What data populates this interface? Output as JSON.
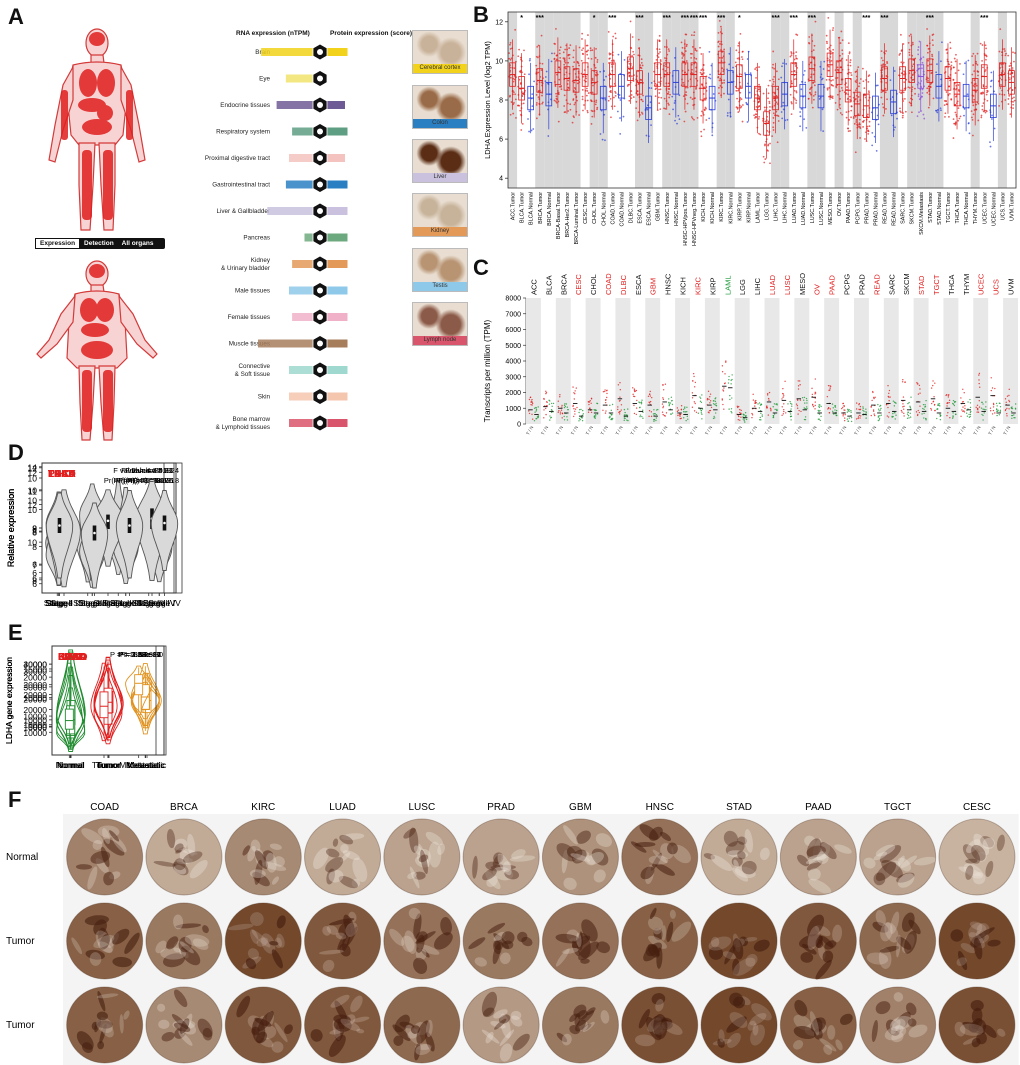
{
  "panels": {
    "a": "A",
    "b": "B",
    "c": "C",
    "d": "D",
    "e": "E",
    "f": "F"
  },
  "panel_a": {
    "rna_header": "RNA expression (nTPM)",
    "protein_header": "Protein expression (score)",
    "legend_tabs": [
      "Expression",
      "Detection",
      "All organs"
    ],
    "organ_rows": [
      {
        "label": "Brain",
        "color": "#f2d21b",
        "rna": 0.95,
        "protein": 0.55
      },
      {
        "label": "Eye",
        "color": "#f1e36b",
        "rna": 0.55,
        "protein": 0.0
      },
      {
        "label": "Endocrine tissues",
        "color": "#6e5a94",
        "rna": 0.7,
        "protein": 0.5
      },
      {
        "label": "Respiratory system",
        "color": "#5e9e82",
        "rna": 0.45,
        "protein": 0.55
      },
      {
        "label": "Proximal digestive tract",
        "color": "#f4c3c0",
        "rna": 0.5,
        "protein": 0.5
      },
      {
        "label": "Gastrointestinal tract",
        "color": "#2a7fc2",
        "rna": 0.55,
        "protein": 0.55
      },
      {
        "label": "Liver & Gallbladder",
        "color": "#c9c1de",
        "rna": 0.85,
        "protein": 0.55
      },
      {
        "label": "Pancreas",
        "color": "#6da97e",
        "rna": 0.25,
        "protein": 0.55
      },
      {
        "label": "Kidney & Urinary bladder",
        "color": "#e39a58",
        "rna": 0.45,
        "protein": 0.55
      },
      {
        "label": "Male tissues",
        "color": "#8fc9e9",
        "rna": 0.5,
        "protein": 0.55
      },
      {
        "label": "Female tissues",
        "color": "#f0b1c8",
        "rna": 0.45,
        "protein": 0.55
      },
      {
        "label": "Muscle tissues",
        "color": "#a77e5c",
        "rna": 1.0,
        "protein": 0.55
      },
      {
        "label": "Connective & Soft tissue",
        "color": "#9fd8cf",
        "rna": 0.5,
        "protein": 0.55
      },
      {
        "label": "Skin",
        "color": "#f4c6ae",
        "rna": 0.5,
        "protein": 0.55
      },
      {
        "label": "Bone marrow & Lymphoid tissues",
        "color": "#d9556b",
        "rna": 0.5,
        "protein": 0.55
      }
    ],
    "tissue_images": [
      {
        "label": "Cerebral cortex",
        "color": "#f2d21b"
      },
      {
        "label": "Colon",
        "color": "#2a7fc2"
      },
      {
        "label": "Liver",
        "color": "#c9c1de"
      },
      {
        "label": "Kidney",
        "color": "#e39a58"
      },
      {
        "label": "Testis",
        "color": "#8fc9e9"
      },
      {
        "label": "Lymph node",
        "color": "#d9556b"
      }
    ]
  },
  "panel_b": {
    "chart_data": {
      "type": "box",
      "ylabel": "LDHA Expression Level (log2 TPM)",
      "ylim": [
        0,
        14
      ],
      "yticks": [
        4,
        6,
        8,
        10,
        12,
        14
      ],
      "categories": [
        "ACC.Tumor",
        "BLCA.Tumor",
        "BLCA.Normal",
        "BRCA.Tumor",
        "BRCA.Normal",
        "BRCA-Basal.Tumor",
        "BRCA-Her2.Tumor",
        "BRCA-Luminal.Tumor",
        "CESC.Tumor",
        "CHOL.Tumor",
        "CHOL.Normal",
        "COAD.Tumor",
        "COAD.Normal",
        "DLBC.Tumor",
        "ESCA.Tumor",
        "ESCA.Normal",
        "GBM.Tumor",
        "HNSC.Tumor",
        "HNSC.Normal",
        "HNSC-HPVpos.Tumor",
        "HNSC-HPVneg.Tumor",
        "KICH.Tumor",
        "KICH.Normal",
        "KIRC.Tumor",
        "KIRC.Normal",
        "KIRP.Tumor",
        "KIRP.Normal",
        "LAML.Tumor",
        "LGG.Tumor",
        "LIHC.Tumor",
        "LIHC.Normal",
        "LUAD.Tumor",
        "LUAD.Normal",
        "LUSC.Tumor",
        "LUSC.Normal",
        "MESO.Tumor",
        "OV.Tumor",
        "PAAD.Tumor",
        "PCPG.Tumor",
        "PRAD.Tumor",
        "PRAD.Normal",
        "READ.Tumor",
        "READ.Normal",
        "SARC.Tumor",
        "SKCM.Tumor",
        "SKCM.Metastasis",
        "STAD.Tumor",
        "STAD.Normal",
        "TGCT.Tumor",
        "THCA.Tumor",
        "THCA.Normal",
        "THYM.Tumor",
        "UCEC.Tumor",
        "UCEC.Normal",
        "UCS.Tumor",
        "UVM.Tumor"
      ],
      "medians": [
        9.3,
        8.6,
        8.1,
        9.0,
        8.3,
        9.4,
        9.1,
        9.0,
        9.3,
        8.9,
        8.1,
        9.3,
        8.7,
        9.6,
        8.9,
        7.6,
        9.3,
        9.3,
        8.9,
        9.3,
        9.3,
        8.6,
        8.1,
        9.9,
        8.9,
        9.2,
        8.7,
        8.1,
        6.8,
        8.1,
        8.3,
        9.3,
        8.2,
        9.6,
        8.2,
        9.8,
        9.4,
        8.5,
        7.8,
        7.7,
        7.6,
        9.1,
        7.9,
        9.1,
        9.5,
        9.2,
        9.5,
        8.7,
        9.1,
        8.3,
        8.2,
        8.5,
        9.2,
        7.7,
        9.3,
        8.9
      ],
      "significance": [
        "",
        "*",
        "",
        "***",
        "",
        "",
        "",
        "",
        "",
        "*",
        "",
        "***",
        "",
        "",
        "***",
        "",
        "",
        "***",
        "",
        "***",
        "***",
        "***",
        "",
        "***",
        "",
        "*",
        "",
        "",
        "",
        "***",
        "",
        "***",
        "",
        "***",
        "",
        "",
        "",
        "",
        "",
        "***",
        "",
        "***",
        "",
        "",
        "",
        "",
        "***",
        "",
        "",
        "",
        "",
        "",
        "***",
        "",
        "",
        ""
      ],
      "shaded_groups": [
        "ACC",
        "BRCA",
        "CHOL",
        "ESCA",
        "HNSC",
        "KIRC",
        "LIHC",
        "LUSC",
        "OV",
        "PCPG",
        "READ",
        "SKCM",
        "STAD",
        "THYM",
        "UCS"
      ]
    }
  },
  "panel_c": {
    "chart_data": {
      "type": "scatter",
      "ylabel": "Transcripts per million (TPM)",
      "ylim": [
        0,
        8000
      ],
      "yticks": [
        0,
        1000,
        2000,
        3000,
        4000,
        5000,
        6000,
        7000,
        8000
      ],
      "cancer_types": [
        "ACC",
        "BLCA",
        "BRCA",
        "CESC",
        "CHOL",
        "COAD",
        "DLBC",
        "ESCA",
        "GBM",
        "HNSC",
        "KICH",
        "KIRC",
        "KIRP",
        "LAML",
        "LGG",
        "LIHC",
        "LUAD",
        "LUSC",
        "MESO",
        "OV",
        "PAAD",
        "PCPG",
        "PRAD",
        "READ",
        "SARC",
        "SKCM",
        "STAD",
        "TGCT",
        "THCA",
        "THYM",
        "UCEC",
        "UCS",
        "UVM"
      ],
      "label_colors": [
        "#111",
        "#111",
        "#111",
        "#e02020",
        "#111",
        "#e02020",
        "#e02020",
        "#111",
        "#e02020",
        "#111",
        "#111",
        "#e02020",
        "#111",
        "#1f9a3a",
        "#111",
        "#111",
        "#e02020",
        "#e02020",
        "#111",
        "#e02020",
        "#e02020",
        "#111",
        "#111",
        "#e02020",
        "#111",
        "#111",
        "#e02020",
        "#e02020",
        "#111",
        "#111",
        "#e02020",
        "#e02020",
        "#111"
      ],
      "tumor_medians": [
        900,
        1100,
        1000,
        1300,
        900,
        1200,
        1600,
        1300,
        1200,
        1400,
        700,
        1800,
        1200,
        2400,
        600,
        1000,
        1400,
        1500,
        1600,
        1700,
        1300,
        700,
        700,
        1200,
        1300,
        1500,
        1400,
        1600,
        1000,
        1300,
        1700,
        1800,
        1200
      ],
      "normal_medians": [
        600,
        800,
        700,
        500,
        700,
        700,
        500,
        800,
        500,
        900,
        600,
        1000,
        900,
        2300,
        400,
        800,
        700,
        800,
        900,
        700,
        700,
        500,
        600,
        700,
        800,
        900,
        800,
        700,
        800,
        900,
        800,
        700,
        700
      ]
    }
  },
  "panel_d": {
    "chart_data": [
      {
        "type": "violin",
        "title": "LIHC",
        "f_value": "F value = 4.37",
        "pr": "Pr(>F) = 0.00488",
        "ylabel": "Relative expression",
        "categories": [
          "Stage I",
          "Stage II",
          "Stage III",
          "Stage IV"
        ],
        "ylim": [
          5.5,
          12.5
        ],
        "yticks": [
          6,
          7,
          8,
          9,
          10,
          11,
          12
        ],
        "medians": [
          8.2,
          8.3,
          8.5,
          8.6
        ],
        "q1": [
          7.9,
          8.0,
          8.2,
          8.4
        ],
        "q3": [
          8.6,
          8.8,
          9.0,
          8.9
        ],
        "mins": [
          6.4,
          6.1,
          6.5,
          7.5
        ],
        "maxs": [
          9.7,
          9.8,
          11.5,
          9.2
        ]
      },
      {
        "type": "violin",
        "title": "LUAD",
        "f_value": "F value = 9.61",
        "pr": "Pr(>F) = 3.63e-06",
        "ylabel": "Relative expression",
        "categories": [
          "Stage I",
          "Stage II",
          "Stage III",
          "Stage IV"
        ],
        "ylim": [
          7.3,
          14.2
        ],
        "yticks": [
          8,
          10,
          12,
          14
        ],
        "medians": [
          9.3,
          9.5,
          9.8,
          9.7
        ],
        "q1": [
          9.0,
          9.2,
          9.5,
          9.3
        ],
        "q3": [
          9.6,
          9.9,
          10.2,
          10.2
        ],
        "mins": [
          7.7,
          7.6,
          7.8,
          7.9
        ],
        "maxs": [
          11.7,
          11.4,
          12.9,
          11.4
        ]
      },
      {
        "type": "violin",
        "title": "PAAD",
        "f_value": "F value = 5.23",
        "pr": "Pr(>F) = 0.00176",
        "ylabel": "Relative expression",
        "categories": [
          "Stage I",
          "Stage II",
          "Stage III",
          "Stage IV"
        ],
        "ylim": [
          4.2,
          12.3
        ],
        "yticks": [
          6,
          8,
          10,
          12
        ],
        "medians": [
          8.5,
          9.1,
          8.5,
          9.2
        ],
        "q1": [
          8.0,
          8.8,
          8.2,
          9.0
        ],
        "q3": [
          9.0,
          9.4,
          8.9,
          9.5
        ],
        "mins": [
          4.7,
          5.0,
          7.5,
          8.9
        ],
        "maxs": [
          10.5,
          11.0,
          9.5,
          9.8
        ]
      },
      {
        "type": "violin",
        "title": "TGCT",
        "f_value": "F value = 3013",
        "pr": "Pr(>F) = 0.0469",
        "ylabel": "Relative expression",
        "categories": [
          "Stage I",
          "Stage II",
          "Stage III"
        ],
        "ylim": [
          5.0,
          11.3
        ],
        "yticks": [
          6,
          8,
          10
        ],
        "medians": [
          8.0,
          8.5,
          8.6
        ],
        "q1": [
          7.5,
          8.1,
          8.1
        ],
        "q3": [
          8.5,
          8.8,
          9.1
        ],
        "mins": [
          5.3,
          6.3,
          5.6
        ],
        "maxs": [
          10.0,
          10.0,
          10.5
        ]
      },
      {
        "type": "violin",
        "title": "THCA",
        "f_value": "F value = 3.24",
        "pr": "Pr(>F) = 0.0218",
        "ylabel": "Relative expression",
        "categories": [
          "Stage I",
          "Stage II",
          "Stage III",
          "Stage IV"
        ],
        "ylim": [
          5.4,
          10.6
        ],
        "yticks": [
          6,
          8,
          10
        ],
        "medians": [
          8.1,
          7.8,
          8.1,
          8.2
        ],
        "q1": [
          7.8,
          7.5,
          7.8,
          7.9
        ],
        "q3": [
          8.4,
          8.1,
          8.4,
          8.5
        ],
        "mins": [
          6.0,
          5.6,
          6.0,
          6.3
        ],
        "maxs": [
          9.4,
          9.0,
          9.5,
          9.5
        ]
      }
    ]
  },
  "panel_e": {
    "chart_data": [
      {
        "type": "violin",
        "title": "BRCA",
        "p": "P = 1.38e-12",
        "ylabel": "LDHA gene expression",
        "categories": [
          "Normal",
          "Tumor",
          "Metastatic"
        ],
        "ylim": [
          0,
          28000
        ],
        "yticks": [
          10000,
          20000
        ],
        "medians": [
          10000,
          13000,
          13500
        ],
        "q1": [
          8000,
          11000,
          11000
        ],
        "q3": [
          12500,
          16000,
          17000
        ],
        "mins": [
          3000,
          4500,
          7000
        ],
        "maxs": [
          27000,
          25000,
          21000
        ]
      },
      {
        "type": "violin",
        "title": "COAD",
        "p": "P = 5.98e-30",
        "ylabel": "LDHA gene expression",
        "categories": [
          "Normal",
          "Tumor",
          "Metastatic"
        ],
        "ylim": [
          0,
          36000
        ],
        "yticks": [
          10000,
          20000,
          30000
        ],
        "medians": [
          13500,
          17000,
          18000
        ],
        "q1": [
          10000,
          14000,
          14000
        ],
        "q3": [
          18000,
          21000,
          22000
        ],
        "mins": [
          3000,
          5000,
          9000
        ],
        "maxs": [
          34000,
          30000,
          27000
        ]
      },
      {
        "type": "violin",
        "title": "KIRC",
        "p": "P = 2.52e-86",
        "ylabel": "LDHA gene expression",
        "categories": [
          "Normal",
          "Tumor",
          "Metastatic"
        ],
        "ylim": [
          0,
          48000
        ],
        "yticks": [
          10000,
          20000,
          30000,
          40000
        ],
        "medians": [
          9500,
          22000,
          25000
        ],
        "q1": [
          7500,
          18000,
          20000
        ],
        "q3": [
          12000,
          26000,
          30000
        ],
        "mins": [
          2500,
          8000,
          13000
        ],
        "maxs": [
          35000,
          38000,
          34000
        ]
      },
      {
        "type": "violin",
        "title": "LUAD",
        "p": "P = 3.18e-87",
        "ylabel": "LDHA gene expression",
        "categories": [
          "Normal",
          "Tumor",
          "Metastatic"
        ],
        "ylim": [
          0,
          39000
        ],
        "yticks": [
          10000,
          20000,
          30000
        ],
        "medians": [
          9000,
          15000,
          19500
        ],
        "q1": [
          7000,
          11000,
          17000
        ],
        "q3": [
          11500,
          19000,
          23000
        ],
        "mins": [
          2500,
          4000,
          13000
        ],
        "maxs": [
          24000,
          35000,
          26000
        ]
      },
      {
        "type": "violin",
        "title": "PAAD",
        "p": "P = 1.38e-11",
        "ylabel": "LDHA gene expression",
        "categories": [
          "Normal",
          "Tumor",
          "Metastatic"
        ],
        "ylim": [
          0,
          31000
        ],
        "yticks": [
          10000,
          20000
        ],
        "medians": [
          10000,
          15000,
          16500
        ],
        "q1": [
          6000,
          12000,
          13000
        ],
        "q3": [
          14000,
          19000,
          20000
        ],
        "mins": [
          1000,
          5000,
          6000
        ],
        "maxs": [
          25000,
          27000,
          26000
        ]
      },
      {
        "type": "violin",
        "title": "PRAD",
        "p": "P = 6.13e-13",
        "ylabel": "LDHA gene expression",
        "categories": [
          "Normal",
          "Tumor",
          "Metastatic"
        ],
        "ylim": [
          0,
          19000
        ],
        "yticks": [
          5000,
          10000,
          15000
        ],
        "medians": [
          6000,
          8500,
          12500
        ],
        "q1": [
          4500,
          6500,
          10500
        ],
        "q3": [
          8000,
          11000,
          14000
        ],
        "mins": [
          1500,
          2500,
          7000
        ],
        "maxs": [
          16000,
          16000,
          15500
        ]
      }
    ]
  },
  "panel_f": {
    "columns": [
      "COAD",
      "BRCA",
      "KIRC",
      "LUAD",
      "LUSC",
      "PRAD",
      "GBM",
      "HNSC",
      "STAD",
      "PAAD",
      "TGCT",
      "CESC"
    ],
    "rows": [
      "Normal",
      "Tumor",
      "Tumor"
    ],
    "stain_levels": [
      [
        0.55,
        0.3,
        0.5,
        0.3,
        0.35,
        0.35,
        0.45,
        0.65,
        0.3,
        0.35,
        0.35,
        0.25
      ],
      [
        0.75,
        0.6,
        0.9,
        0.8,
        0.65,
        0.6,
        0.65,
        0.75,
        0.9,
        0.8,
        0.7,
        0.9
      ],
      [
        0.75,
        0.5,
        0.8,
        0.8,
        0.7,
        0.4,
        0.6,
        0.85,
        0.9,
        0.75,
        0.55,
        0.85
      ]
    ]
  }
}
